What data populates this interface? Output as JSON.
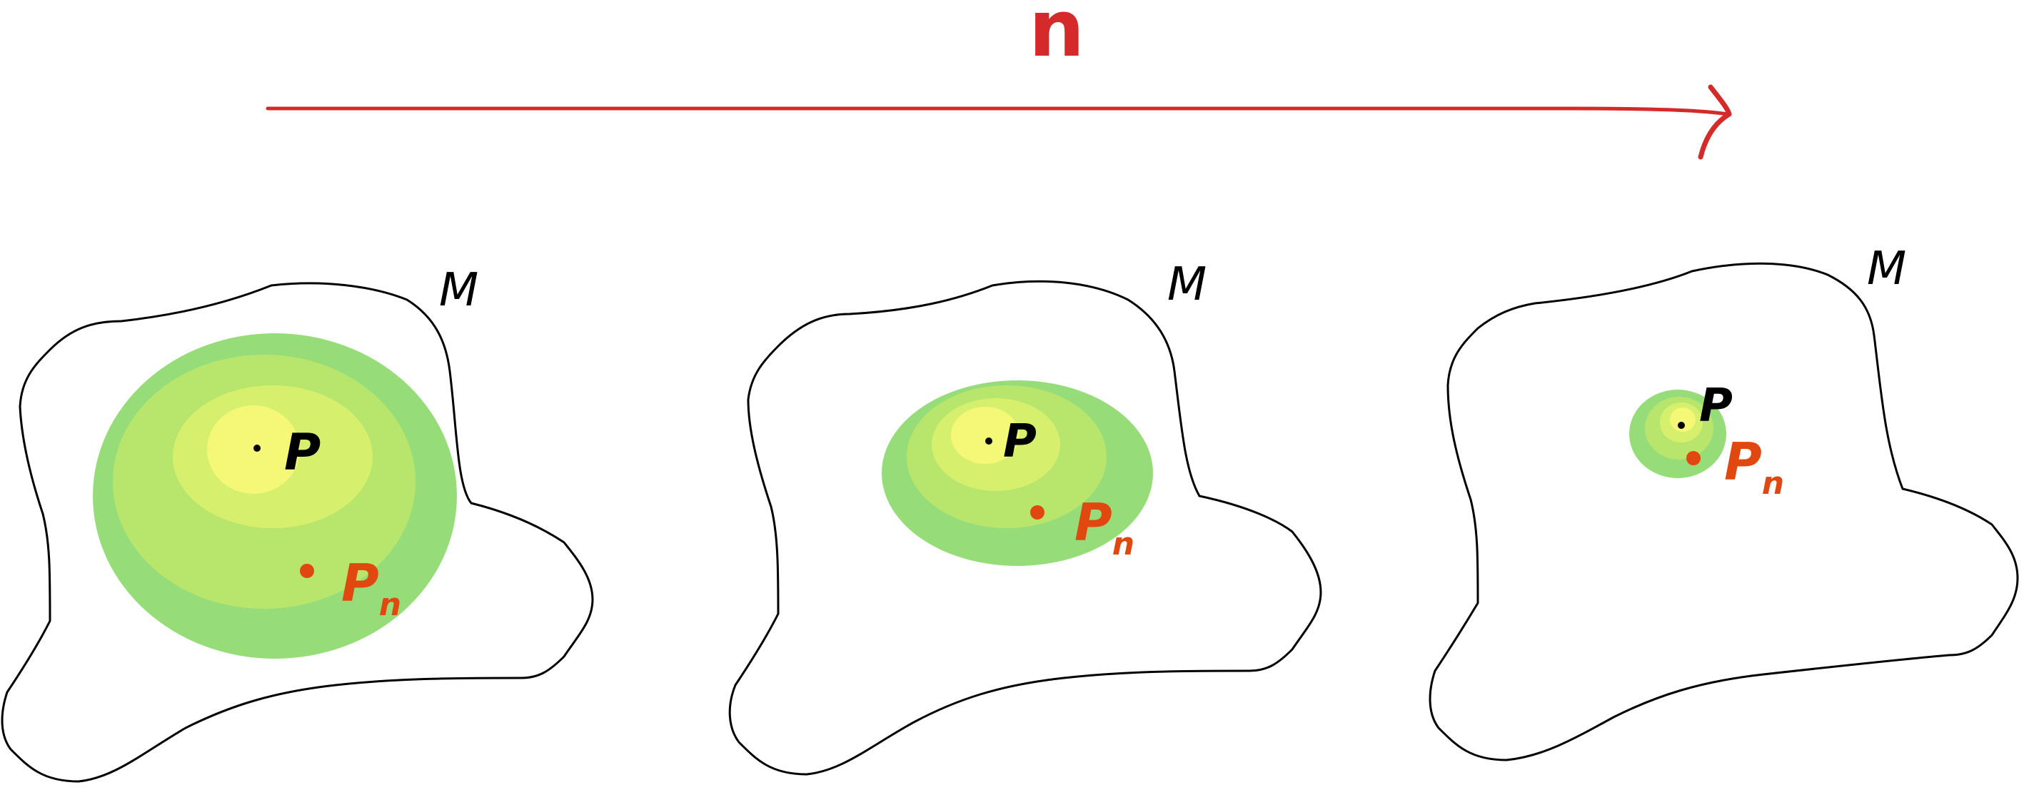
{
  "top_arrow": {
    "label": "n",
    "color": "#d42a2a"
  },
  "panels": [
    {
      "manifold_label": "M",
      "point_label": "P",
      "sequence_label": "P",
      "sequence_subscript": "n",
      "zone_colors": [
        "#96dd7a",
        "#b8e66c",
        "#d6f06e",
        "#f5f777"
      ]
    },
    {
      "manifold_label": "M",
      "point_label": "P",
      "sequence_label": "P",
      "sequence_subscript": "n",
      "zone_colors": [
        "#96dd7a",
        "#b8e66c",
        "#d6f06e",
        "#f5f777"
      ]
    },
    {
      "manifold_label": "M",
      "point_label": "P",
      "sequence_label": "P",
      "sequence_subscript": "n",
      "zone_colors": [
        "#96dd7a",
        "#b8e66c",
        "#d6f06e",
        "#f5f777"
      ]
    }
  ],
  "colors": {
    "point": "#000000",
    "sequence": "#e0480f",
    "outline": "#000000"
  }
}
